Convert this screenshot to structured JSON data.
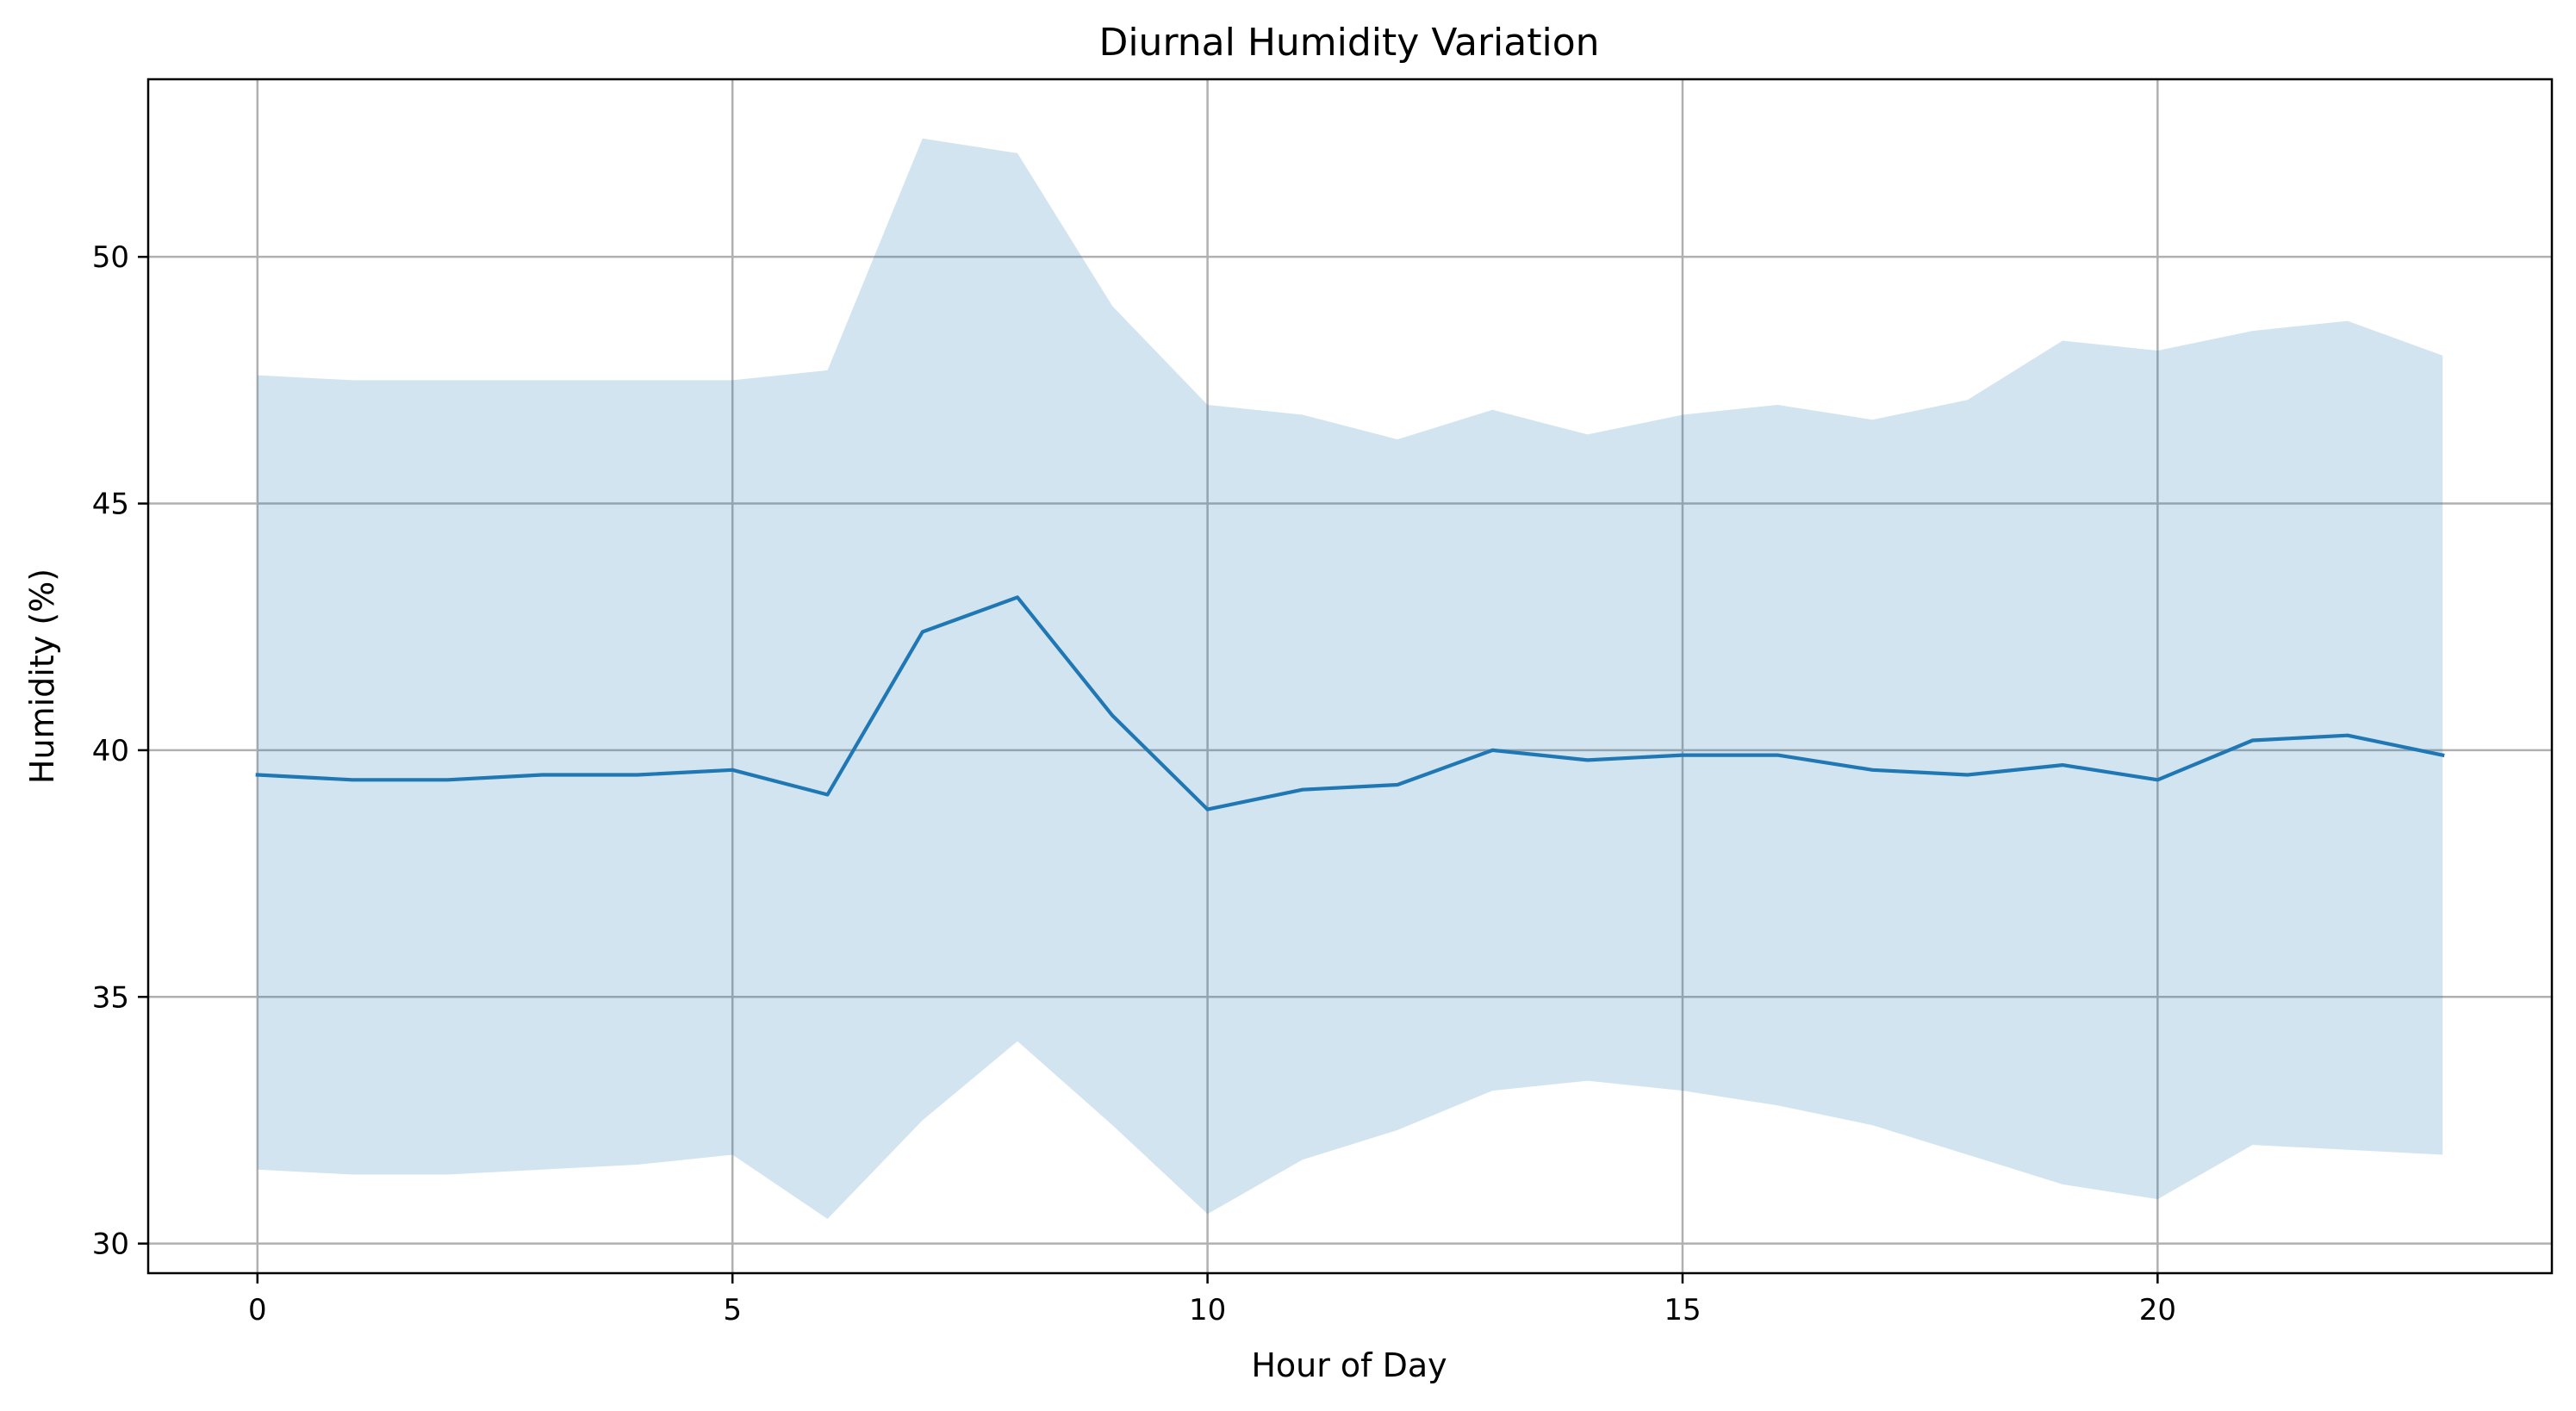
{
  "chart_data": {
    "type": "line",
    "title": "Diurnal Humidity Variation",
    "xlabel": "Hour of Day",
    "ylabel": "Humidity (%)",
    "xlim": [
      -1.15,
      24.15
    ],
    "ylim": [
      29.4,
      53.6
    ],
    "xticks": [
      0,
      5,
      10,
      15,
      20
    ],
    "yticks": [
      30,
      35,
      40,
      45,
      50
    ],
    "grid": true,
    "x": [
      0,
      1,
      2,
      3,
      4,
      5,
      6,
      7,
      8,
      9,
      10,
      11,
      12,
      13,
      14,
      15,
      16,
      17,
      18,
      19,
      20,
      21,
      22,
      23
    ],
    "series": [
      {
        "kind": "line",
        "values": [
          39.5,
          39.4,
          39.4,
          39.5,
          39.5,
          39.6,
          39.1,
          42.4,
          43.1,
          40.7,
          38.8,
          39.2,
          39.3,
          40.0,
          39.8,
          39.9,
          39.9,
          39.6,
          39.5,
          39.7,
          39.4,
          40.2,
          40.3,
          39.9
        ]
      },
      {
        "kind": "band",
        "lower": [
          31.5,
          31.4,
          31.4,
          31.5,
          31.6,
          31.8,
          30.5,
          32.5,
          34.1,
          32.4,
          30.6,
          31.7,
          32.3,
          33.1,
          33.3,
          33.1,
          32.8,
          32.4,
          31.8,
          31.2,
          30.9,
          32.0,
          31.9,
          31.8
        ],
        "upper": [
          47.6,
          47.5,
          47.5,
          47.5,
          47.5,
          47.5,
          47.7,
          52.4,
          52.1,
          49.0,
          47.0,
          46.8,
          46.3,
          46.9,
          46.4,
          46.8,
          47.0,
          46.7,
          47.1,
          48.3,
          48.1,
          48.5,
          48.7,
          48.0
        ]
      }
    ],
    "colors": {
      "line": "#1f77b4",
      "band": "#1f77b4",
      "grid": "#b0b0b0",
      "axis": "#000000"
    }
  }
}
